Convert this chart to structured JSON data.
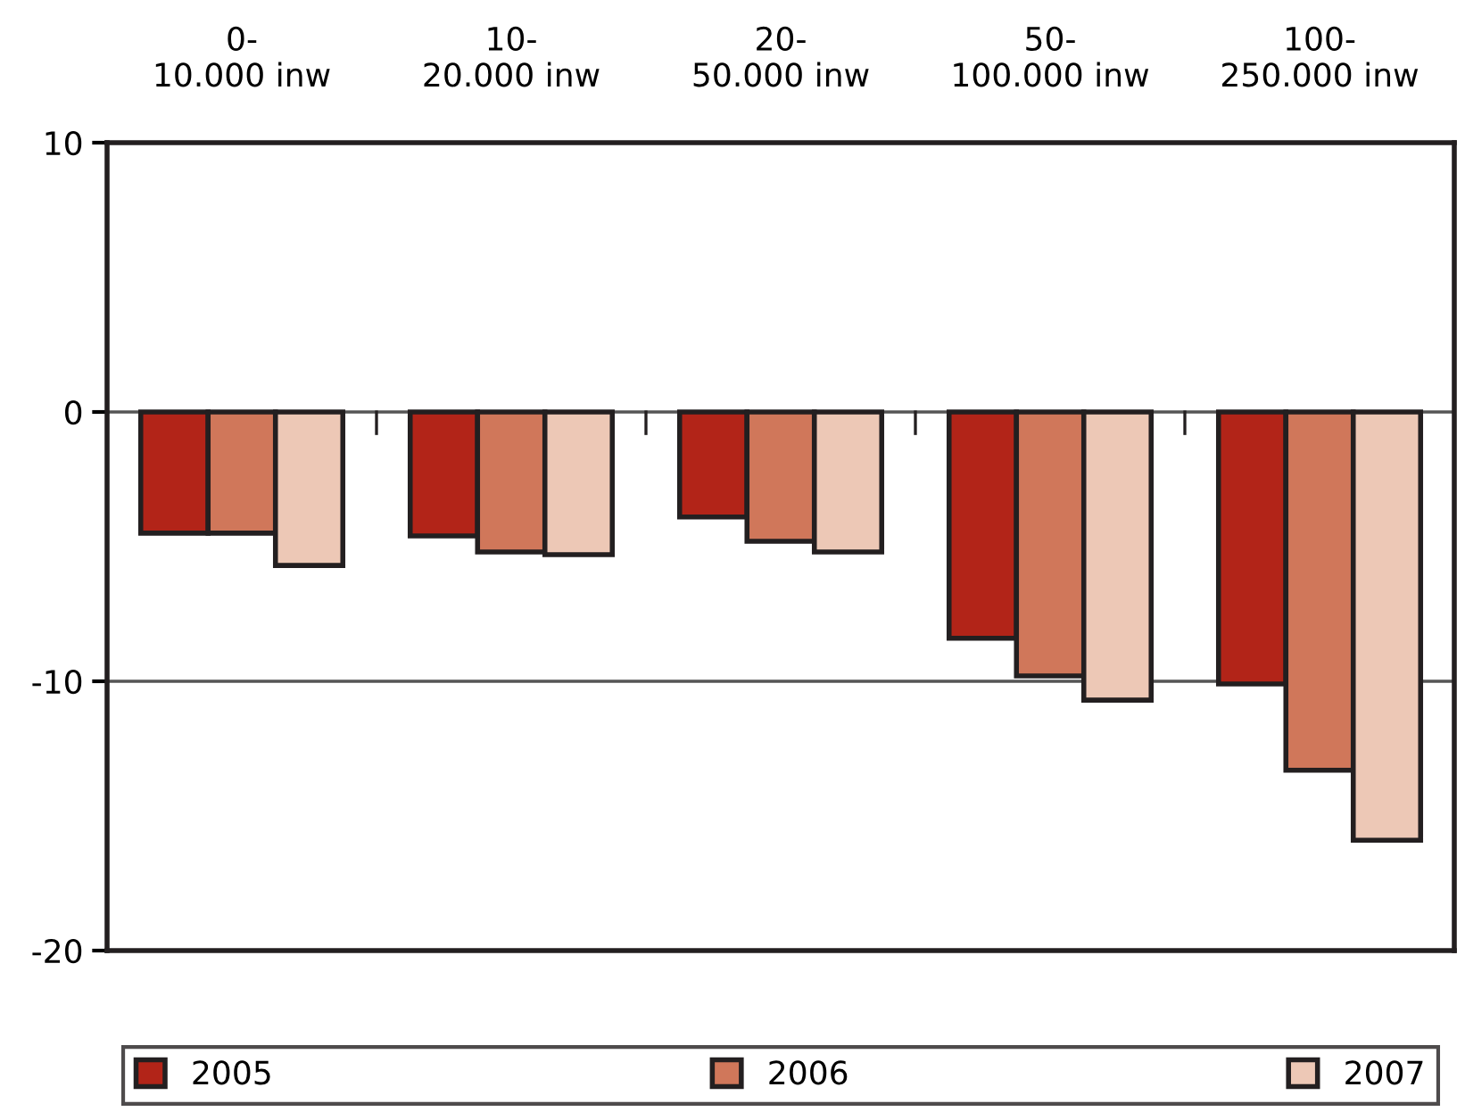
{
  "chart_data": {
    "type": "bar",
    "categories": [
      "0-\n10.000 inw",
      "10-\n20.000 inw",
      "20-\n50.000 inw",
      "50-\n100.000 inw",
      "100-\n250.000 inw"
    ],
    "series": [
      {
        "name": "2005",
        "color": "#b22418",
        "values": [
          -4.5,
          -4.6,
          -3.9,
          -8.4,
          -10.1
        ]
      },
      {
        "name": "2006",
        "color": "#d0775a",
        "values": [
          -4.5,
          -5.2,
          -4.8,
          -9.8,
          -13.3
        ]
      },
      {
        "name": "2007",
        "color": "#edc8b6",
        "values": [
          -5.7,
          -5.3,
          -5.2,
          -10.7,
          -15.9
        ]
      }
    ],
    "ylim": [
      -20,
      10
    ],
    "yticks": [
      {
        "value": 10,
        "label": "10"
      },
      {
        "value": 0,
        "label": "0"
      },
      {
        "value": -10,
        "label": "-10"
      },
      {
        "value": -20,
        "label": "-20"
      }
    ],
    "grid": "y",
    "legend": "bottom"
  }
}
